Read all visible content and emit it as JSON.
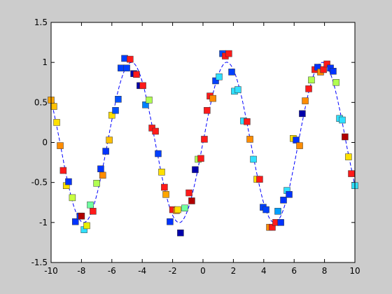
{
  "chart_data": {
    "type": "scatter",
    "xlim": [
      -10,
      10
    ],
    "xticks": [
      -10,
      -8,
      -6,
      -4,
      -2,
      0,
      2,
      4,
      6,
      8,
      10
    ],
    "ylim": [
      -1.5,
      1.5
    ],
    "yticks": [
      -1.5,
      -1,
      -0.5,
      0,
      0.5,
      1,
      1.5
    ],
    "series": [
      {
        "type": "scatter",
        "marker": "square",
        "x": [
          -10,
          -9.82,
          -9.63,
          -9.4,
          -9.2,
          -9.0,
          -8.85,
          -8.6,
          -8.4,
          -8.1,
          -8.0,
          -7.83,
          -7.65,
          -7.42,
          -7.24,
          -7.0,
          -6.73,
          -6.6,
          -6.4,
          -6.17,
          -6.0,
          -5.76,
          -5.58,
          -5.4,
          -5.16,
          -5.02,
          -4.8,
          -4.56,
          -4.38,
          -4.15,
          -3.96,
          -3.78,
          -3.55,
          -3.36,
          -3.13,
          -2.95,
          -2.72,
          -2.54,
          -2.44,
          -2.17,
          -2.0,
          -1.75,
          -1.66,
          -1.48,
          -1.2,
          -0.92,
          -0.74,
          -0.51,
          -0.32,
          -0.14,
          0.09,
          0.27,
          0.46,
          0.65,
          0.83,
          1.06,
          1.29,
          1.47,
          1.7,
          1.89,
          2.07,
          2.3,
          2.67,
          2.9,
          3.09,
          3.32,
          3.55,
          3.73,
          3.96,
          4.15,
          4.38,
          4.56,
          4.79,
          4.93,
          5.12,
          5.3,
          5.53,
          5.67,
          5.94,
          6.13,
          6.36,
          6.54,
          6.73,
          6.96,
          7.14,
          7.37,
          7.55,
          7.74,
          7.93,
          8.16,
          8.39,
          8.57,
          8.76,
          8.99,
          9.17,
          9.35,
          9.58,
          9.77,
          10.0
        ],
        "values": [
          0.53,
          0.45,
          0.25,
          -0.04,
          -0.35,
          -0.54,
          -0.49,
          -0.69,
          -0.99,
          -0.92,
          -0.92,
          -1.09,
          -1.04,
          -0.78,
          -0.86,
          -0.51,
          -0.33,
          -0.41,
          -0.11,
          0.03,
          0.34,
          0.4,
          0.54,
          0.93,
          1.05,
          0.93,
          1.04,
          0.86,
          0.85,
          0.71,
          0.71,
          0.47,
          0.53,
          0.18,
          0.14,
          -0.14,
          -0.37,
          -0.56,
          -0.65,
          -0.99,
          -0.84,
          -0.85,
          -0.84,
          -1.13,
          -0.82,
          -0.63,
          -0.73,
          -0.34,
          -0.21,
          -0.2,
          0.04,
          0.4,
          0.58,
          0.55,
          0.77,
          0.82,
          1.11,
          1.08,
          1.11,
          0.88,
          0.64,
          0.66,
          0.27,
          0.26,
          0.04,
          -0.21,
          -0.46,
          -0.46,
          -0.81,
          -0.84,
          -1.06,
          -1.06,
          -1.0,
          -0.86,
          -1.0,
          -0.72,
          -0.6,
          -0.65,
          0.05,
          0.03,
          -0.04,
          0.36,
          0.52,
          0.67,
          0.78,
          0.91,
          0.94,
          0.88,
          0.91,
          0.98,
          0.93,
          0.89,
          0.75,
          0.3,
          0.28,
          0.07,
          -0.18,
          -0.39,
          -0.54
        ],
        "colors": [
          "#ffa500",
          "#ffc000",
          "#ffe000",
          "#ff8c00",
          "#ff1a1a",
          "#ffe000",
          "#0033ff",
          "#c8ff40",
          "#0033ff",
          "#0033ff",
          "#b00000",
          "#30e0ff",
          "#e8f000",
          "#70ffa0",
          "#ff1a1a",
          "#b0ff50",
          "#0033ff",
          "#ff8c00",
          "#0033ff",
          "#ffc000",
          "#ffe000",
          "#0050ff",
          "#0050ff",
          "#0040ff",
          "#0040ff",
          "#0040ff",
          "#ff1a1a",
          "#0000aa",
          "#ff1a1a",
          "#0000aa",
          "#ff1a1a",
          "#0080ff",
          "#b0ff50",
          "#ff1a1a",
          "#ff1a1a",
          "#0040ff",
          "#ffe000",
          "#ff1a1a",
          "#ffa500",
          "#0033ff",
          "#ff1a1a",
          "#ff8c00",
          "#ffe000",
          "#0000aa",
          "#70ffa0",
          "#ff1a1a",
          "#b00000",
          "#0000aa",
          "#b0ff50",
          "#ff1a1a",
          "#ff1a1a",
          "#ff1a1a",
          "#ff1a1a",
          "#ff8c00",
          "#0040ff",
          "#30e0ff",
          "#0050ff",
          "#ff1a1a",
          "#ff1a1a",
          "#0040ff",
          "#30e0ff",
          "#30e0ff",
          "#30e0ff",
          "#ff1a1a",
          "#ff8c00",
          "#30e0ff",
          "#ffe000",
          "#ff1a1a",
          "#0040ff",
          "#0040ff",
          "#ff8c00",
          "#ff1a1a",
          "#ff1a1a",
          "#00a0ff",
          "#0033ff",
          "#0033ff",
          "#30e0ff",
          "#0033ff",
          "#ffe000",
          "#0033ff",
          "#ff8c00",
          "#0000aa",
          "#ff8c00",
          "#ff1a1a",
          "#b0ff50",
          "#ff1a1a",
          "#0033ff",
          "#ff8c00",
          "#ff1a1a",
          "#ff1a1a",
          "#0033ff",
          "#0033ff",
          "#b0ff50",
          "#30e0ff",
          "#30e0ff",
          "#b00000",
          "#ffe000",
          "#ff1a1a",
          "#30e0ff"
        ]
      },
      {
        "type": "line",
        "color": "#0000ff",
        "style": "dashed",
        "x": [
          -10,
          -9.5,
          -9,
          -8.5,
          -8,
          -7.5,
          -7,
          -6.5,
          -6,
          -5.5,
          -5,
          -4.5,
          -4,
          -3.5,
          -3,
          -2.5,
          -2,
          -1.5,
          -1,
          -0.5,
          0,
          0.5,
          1,
          1.5,
          2,
          2.5,
          3,
          3.5,
          4,
          4.5,
          5,
          5.5,
          6,
          6.5,
          7,
          7.5,
          8,
          8.5,
          9,
          9.5,
          10
        ],
        "values": [
          0.54,
          0.08,
          -0.41,
          -0.8,
          -0.99,
          -0.94,
          -0.66,
          -0.22,
          0.28,
          0.71,
          0.96,
          0.98,
          0.76,
          0.35,
          -0.14,
          -0.6,
          -0.91,
          -1.0,
          -0.84,
          -0.48,
          0,
          0.48,
          0.84,
          1.0,
          0.91,
          0.6,
          0.14,
          -0.35,
          -0.76,
          -0.98,
          -0.96,
          -0.71,
          -0.28,
          0.22,
          0.66,
          0.94,
          0.99,
          0.8,
          0.41,
          -0.08,
          -0.54
        ]
      }
    ]
  }
}
